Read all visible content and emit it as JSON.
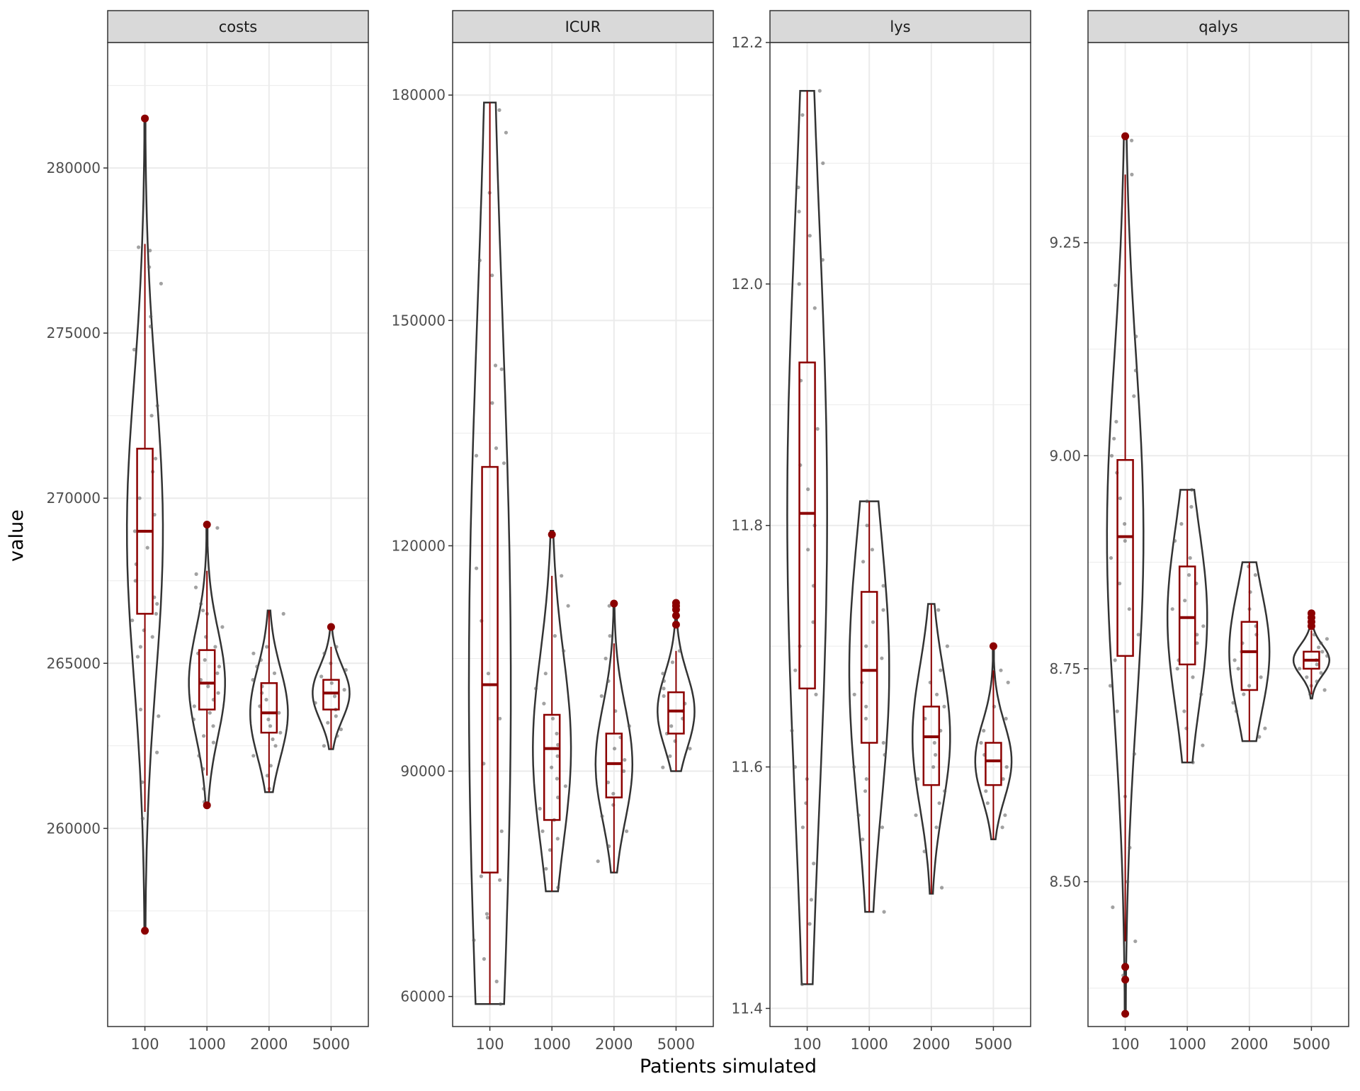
{
  "chart_data": {
    "type": "violin",
    "xlabel": "Patients simulated",
    "ylabel": "value",
    "categories": [
      "100",
      "1000",
      "2000",
      "5000"
    ],
    "colors": {
      "box": "#8B0000",
      "violin": "#333333",
      "points": "#555555",
      "strip": "#D9D9D9",
      "grid": "#EBEBEB",
      "border": "#333333"
    },
    "panels": [
      {
        "name": "costs",
        "ylim": [
          254000,
          283800
        ],
        "ticks": [
          260000,
          265000,
          270000,
          275000,
          280000
        ],
        "tick_labels": [
          "260000",
          "265000",
          "270000",
          "275000",
          "280000"
        ],
        "groups": [
          {
            "category": "100",
            "violin_min": 256900,
            "violin_max": 281500,
            "q1": 266500,
            "median": 269000,
            "q3": 271500,
            "whisker_low": 260500,
            "whisker_high": 277700,
            "outliers": [
              281500,
              256900
            ],
            "points": [
              277500,
              277600,
              277000,
              276500,
              275500,
              275200,
              274500,
              272800,
              272500,
              271200,
              270800,
              270000,
              269500,
              269000,
              268500,
              268000,
              267500,
              267000,
              266800,
              266500,
              266300,
              266000,
              265800,
              265500,
              265200,
              263600,
              263400,
              262300,
              261400,
              260300
            ]
          },
          {
            "category": "1000",
            "violin_min": 260700,
            "violin_max": 269200,
            "q1": 263600,
            "median": 264400,
            "q3": 265400,
            "whisker_low": 261600,
            "whisker_high": 267800,
            "outliers": [
              269200,
              260700
            ],
            "points": [
              269100,
              267700,
              267300,
              266800,
              266600,
              266500,
              266100,
              265800,
              265500,
              265300,
              265100,
              264900,
              264700,
              264500,
              264300,
              264100,
              263900,
              263700,
              263500,
              263300,
              263100,
              262800,
              262600,
              262200,
              261800,
              261200,
              260800
            ]
          },
          {
            "category": "2000",
            "violin_min": 261100,
            "violin_max": 266600,
            "q1": 262900,
            "median": 263500,
            "q3": 264400,
            "whisker_low": 261100,
            "whisker_high": 266600,
            "outliers": [],
            "points": [
              266500,
              265500,
              265300,
              265100,
              264900,
              264700,
              264500,
              264300,
              264100,
              263900,
              263700,
              263500,
              263300,
              263100,
              262900,
              262700,
              262500,
              262200,
              261900,
              261600,
              261200
            ]
          },
          {
            "category": "5000",
            "violin_min": 262400,
            "violin_max": 266100,
            "q1": 263600,
            "median": 264100,
            "q3": 264500,
            "whisker_low": 262400,
            "whisker_high": 265500,
            "outliers": [
              266100
            ],
            "points": [
              265500,
              265300,
              265000,
              264800,
              264600,
              264400,
              264200,
              264000,
              263800,
              263600,
              263400,
              263200,
              263000,
              262800,
              262500
            ]
          }
        ]
      },
      {
        "name": "ICUR",
        "ylim": [
          56000,
          187000
        ],
        "ticks": [
          60000,
          90000,
          120000,
          150000,
          180000
        ],
        "tick_labels": [
          "60000",
          "90000",
          "120000",
          "150000",
          "180000"
        ],
        "groups": [
          {
            "category": "100",
            "violin_min": 59000,
            "violin_max": 179000,
            "q1": 76500,
            "median": 101500,
            "q3": 130500,
            "whisker_low": 59000,
            "whisker_high": 179000,
            "outliers": [],
            "points": [
              178000,
              175000,
              167000,
              158000,
              156000,
              144000,
              143500,
              139000,
              133000,
              132000,
              131000,
              117000,
              110000,
              103000,
              97000,
              91000,
              82000,
              76000,
              75500,
              71000,
              70500,
              67500,
              65000,
              62000,
              59000
            ]
          },
          {
            "category": "1000",
            "violin_min": 74000,
            "violin_max": 122000,
            "q1": 83500,
            "median": 93000,
            "q3": 97500,
            "whisker_low": 74000,
            "whisker_high": 116000,
            "outliers": [
              121500
            ],
            "points": [
              116000,
              112000,
              108000,
              106000,
              103000,
              101000,
              99000,
              97000,
              95000,
              93500,
              92000,
              90500,
              89000,
              88000,
              86500,
              85000,
              83500,
              82000,
              81000,
              79500,
              77000,
              74500
            ]
          },
          {
            "category": "2000",
            "violin_min": 76500,
            "violin_max": 112500,
            "q1": 86500,
            "median": 91000,
            "q3": 95000,
            "whisker_low": 76500,
            "whisker_high": 107000,
            "outliers": [
              112300
            ],
            "points": [
              112000,
              108000,
              105000,
              102000,
              100000,
              98000,
              96000,
              94500,
              93000,
              91500,
              90000,
              88500,
              87000,
              85500,
              84000,
              82000,
              80000,
              78000
            ]
          },
          {
            "category": "5000",
            "violin_min": 90000,
            "violin_max": 112500,
            "q1": 95000,
            "median": 98000,
            "q3": 100500,
            "whisker_low": 90000,
            "whisker_high": 106000,
            "outliers": [
              112400,
              112000,
              111500,
              110700,
              109500
            ],
            "points": [
              106000,
              104500,
              103000,
              102000,
              101000,
              100000,
              99000,
              98000,
              97000,
              96000,
              95000,
              94000,
              93000,
              92000,
              90500
            ]
          }
        ]
      },
      {
        "name": "lys",
        "ylim": [
          11.385,
          12.2
        ],
        "ticks": [
          11.4,
          11.6,
          11.8,
          12.0,
          12.2
        ],
        "tick_labels": [
          "11.4",
          "11.6",
          "11.8",
          "12.0",
          "12.2"
        ],
        "groups": [
          {
            "category": "100",
            "violin_min": 11.42,
            "violin_max": 12.16,
            "q1": 11.665,
            "median": 11.81,
            "q3": 11.935,
            "whisker_low": 11.42,
            "whisker_high": 12.16,
            "outliers": [],
            "points": [
              12.16,
              12.14,
              12.1,
              12.08,
              12.06,
              12.04,
              12.02,
              12.0,
              11.98,
              11.92,
              11.88,
              11.85,
              11.83,
              11.8,
              11.78,
              11.75,
              11.72,
              11.7,
              11.68,
              11.66,
              11.63,
              11.6,
              11.59,
              11.57,
              11.55,
              11.52,
              11.49,
              11.47,
              11.42
            ]
          },
          {
            "category": "1000",
            "violin_min": 11.48,
            "violin_max": 11.82,
            "q1": 11.62,
            "median": 11.68,
            "q3": 11.745,
            "whisker_low": 11.48,
            "whisker_high": 11.82,
            "outliers": [],
            "points": [
              11.82,
              11.8,
              11.78,
              11.77,
              11.75,
              11.73,
              11.72,
              11.7,
              11.69,
              11.67,
              11.66,
              11.65,
              11.64,
              11.62,
              11.61,
              11.6,
              11.59,
              11.58,
              11.56,
              11.55,
              11.54,
              11.48
            ]
          },
          {
            "category": "2000",
            "violin_min": 11.495,
            "violin_max": 11.735,
            "q1": 11.585,
            "median": 11.625,
            "q3": 11.65,
            "whisker_low": 11.495,
            "whisker_high": 11.735,
            "outliers": [],
            "points": [
              11.73,
              11.7,
              11.68,
              11.67,
              11.66,
              11.65,
              11.64,
              11.63,
              11.62,
              11.61,
              11.6,
              11.59,
              11.58,
              11.57,
              11.56,
              11.55,
              11.53,
              11.5
            ]
          },
          {
            "category": "5000",
            "violin_min": 11.54,
            "violin_max": 11.7,
            "q1": 11.585,
            "median": 11.605,
            "q3": 11.62,
            "whisker_low": 11.54,
            "whisker_high": 11.68,
            "outliers": [
              11.7
            ],
            "points": [
              11.68,
              11.67,
              11.65,
              11.64,
              11.63,
              11.62,
              11.61,
              11.6,
              11.59,
              11.58,
              11.57,
              11.56,
              11.55
            ]
          }
        ]
      },
      {
        "name": "qalys",
        "ylim": [
          8.33,
          9.485
        ],
        "ticks": [
          8.5,
          8.75,
          9.0,
          9.25
        ],
        "tick_labels": [
          "8.50",
          "8.75",
          "9.00",
          "9.25"
        ],
        "groups": [
          {
            "category": "100",
            "violin_min": 8.345,
            "violin_max": 9.375,
            "q1": 8.765,
            "median": 8.905,
            "q3": 8.995,
            "whisker_low": 8.43,
            "whisker_high": 9.33,
            "outliers": [
              9.375,
              8.4,
              8.385,
              8.345
            ],
            "points": [
              9.37,
              9.33,
              9.2,
              9.14,
              9.1,
              9.07,
              9.04,
              9.02,
              9.0,
              8.98,
              8.95,
              8.92,
              8.9,
              8.88,
              8.85,
              8.82,
              8.79,
              8.76,
              8.73,
              8.7,
              8.65,
              8.6,
              8.54,
              8.5,
              8.47,
              8.43,
              8.39
            ]
          },
          {
            "category": "1000",
            "violin_min": 8.64,
            "violin_max": 8.96,
            "q1": 8.755,
            "median": 8.81,
            "q3": 8.87,
            "whisker_low": 8.64,
            "whisker_high": 8.96,
            "outliers": [],
            "points": [
              8.96,
              8.94,
              8.92,
              8.9,
              8.88,
              8.86,
              8.85,
              8.83,
              8.82,
              8.8,
              8.79,
              8.78,
              8.76,
              8.75,
              8.74,
              8.72,
              8.7,
              8.68,
              8.66,
              8.64
            ]
          },
          {
            "category": "2000",
            "violin_min": 8.665,
            "violin_max": 8.875,
            "q1": 8.725,
            "median": 8.77,
            "q3": 8.805,
            "whisker_low": 8.665,
            "whisker_high": 8.875,
            "outliers": [],
            "points": [
              8.87,
              8.86,
              8.84,
              8.82,
              8.8,
              8.79,
              8.78,
              8.77,
              8.76,
              8.75,
              8.74,
              8.73,
              8.72,
              8.71,
              8.7,
              8.68,
              8.67
            ]
          },
          {
            "category": "5000",
            "violin_min": 8.715,
            "violin_max": 8.815,
            "q1": 8.75,
            "median": 8.76,
            "q3": 8.77,
            "whisker_low": 8.72,
            "whisker_high": 8.795,
            "outliers": [
              8.815,
              8.81,
              8.805,
              8.8
            ],
            "points": [
              8.79,
              8.785,
              8.78,
              8.775,
              8.77,
              8.765,
              8.76,
              8.755,
              8.75,
              8.745,
              8.74,
              8.735,
              8.73,
              8.725,
              8.72
            ]
          }
        ]
      }
    ]
  }
}
